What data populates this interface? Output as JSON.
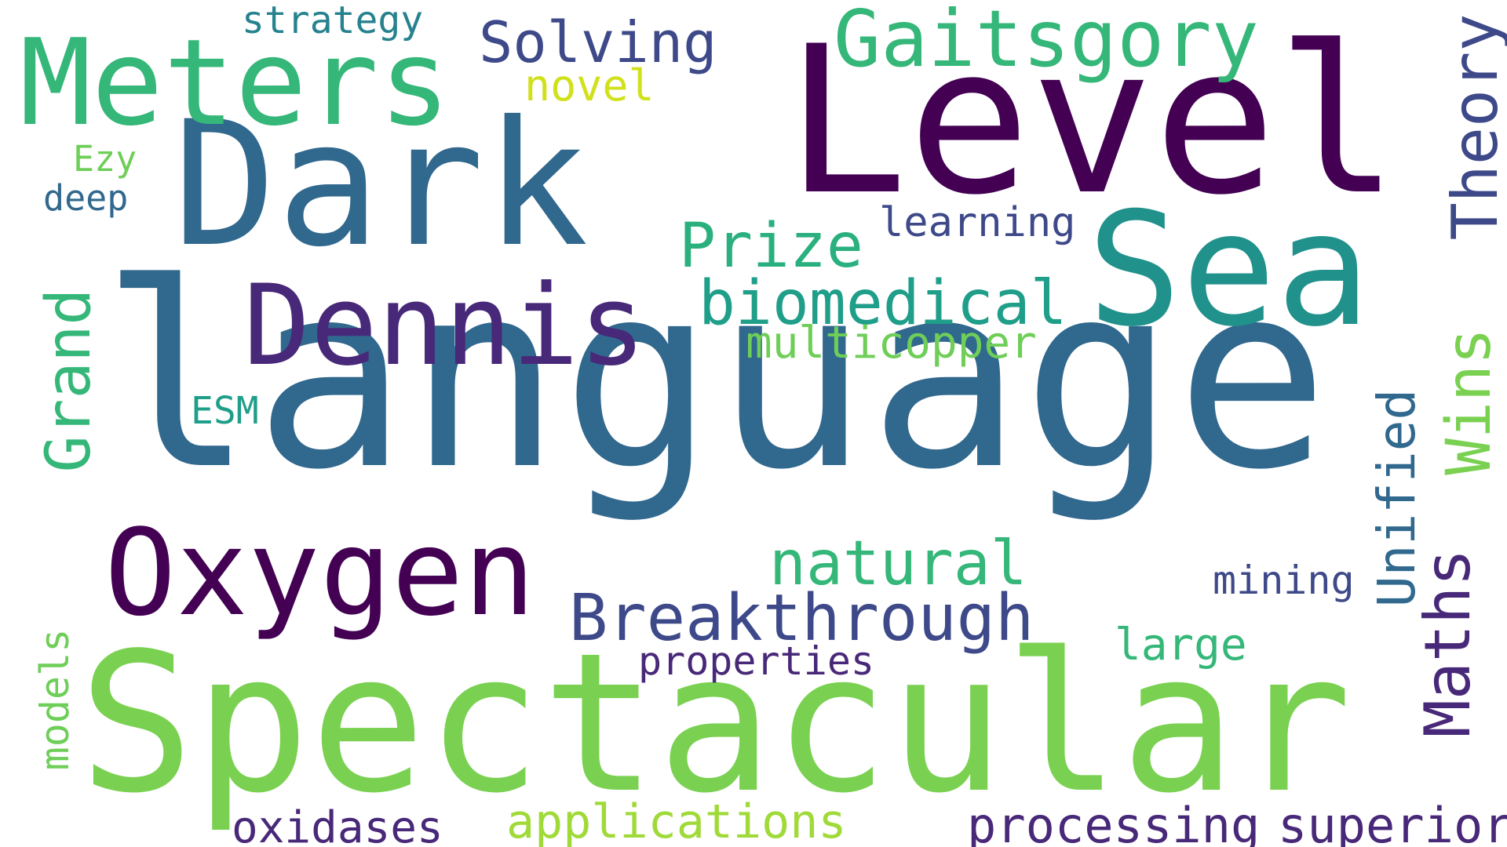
{
  "words": [
    {
      "text": "language",
      "color": "#31688e"
    },
    {
      "text": "Spectacular",
      "color": "#7ad151"
    },
    {
      "text": "Level",
      "color": "#440154"
    },
    {
      "text": "Dark",
      "color": "#31688e"
    },
    {
      "text": "Sea",
      "color": "#21918c"
    },
    {
      "text": "Meters",
      "color": "#35b779"
    },
    {
      "text": "Oxygen",
      "color": "#440154"
    },
    {
      "text": "Dennis",
      "color": "#482878"
    },
    {
      "text": "Gaitsgory",
      "color": "#35b779"
    },
    {
      "text": "Solving",
      "color": "#3e4989"
    },
    {
      "text": "Breakthrough",
      "color": "#3e4989"
    },
    {
      "text": "biomedical",
      "color": "#1f9e89"
    },
    {
      "text": "natural",
      "color": "#35b779"
    },
    {
      "text": "Prize",
      "color": "#2ab07f"
    },
    {
      "text": "Theory",
      "color": "#3e4989"
    },
    {
      "text": "Wins",
      "color": "#7ad151"
    },
    {
      "text": "Unified",
      "color": "#31688e"
    },
    {
      "text": "Maths",
      "color": "#482878"
    },
    {
      "text": "Grand",
      "color": "#35b779"
    },
    {
      "text": "processing",
      "color": "#482878"
    },
    {
      "text": "superior",
      "color": "#482878"
    },
    {
      "text": "applications",
      "color": "#a0da39"
    },
    {
      "text": "oxidases",
      "color": "#482878"
    },
    {
      "text": "multicopper",
      "color": "#6ece58"
    },
    {
      "text": "large",
      "color": "#35b779"
    },
    {
      "text": "properties",
      "color": "#482878"
    },
    {
      "text": "learning",
      "color": "#3e4989"
    },
    {
      "text": "mining",
      "color": "#3e4989"
    },
    {
      "text": "models",
      "color": "#6ece58"
    },
    {
      "text": "strategy",
      "color": "#26828e"
    },
    {
      "text": "novel",
      "color": "#d0e11c"
    },
    {
      "text": "Ezy",
      "color": "#6ece58"
    },
    {
      "text": "deep",
      "color": "#31688e"
    },
    {
      "text": "ESM",
      "color": "#1f9e89"
    }
  ]
}
